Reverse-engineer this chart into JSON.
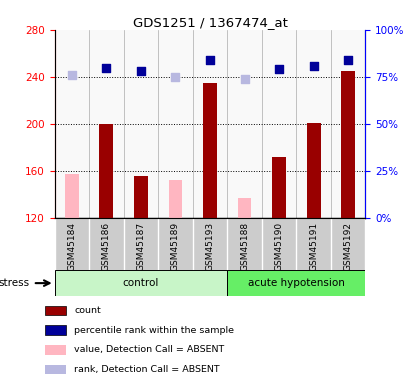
{
  "title": "GDS1251 / 1367474_at",
  "samples": [
    "GSM45184",
    "GSM45186",
    "GSM45187",
    "GSM45189",
    "GSM45193",
    "GSM45188",
    "GSM45190",
    "GSM45191",
    "GSM45192"
  ],
  "bar_values": [
    null,
    200,
    155,
    null,
    235,
    null,
    172,
    201,
    245
  ],
  "bar_absent_values": [
    157,
    null,
    null,
    152,
    null,
    137,
    null,
    null,
    null
  ],
  "rank_values": [
    null,
    80,
    78,
    null,
    84,
    null,
    79,
    81,
    84
  ],
  "rank_absent_values": [
    76,
    null,
    null,
    75,
    null,
    74,
    null,
    null,
    null
  ],
  "bar_color": "#990000",
  "bar_absent_color": "#ffb6c1",
  "rank_color": "#000099",
  "rank_absent_color": "#b8b8e0",
  "ylim_left": [
    120,
    280
  ],
  "ylim_right": [
    0,
    100
  ],
  "yticks_left": [
    120,
    160,
    200,
    240,
    280
  ],
  "yticks_right": [
    0,
    25,
    50,
    75,
    100
  ],
  "ytick_labels_right": [
    "0%",
    "25%",
    "50%",
    "75%",
    "100%"
  ],
  "gridlines": [
    160,
    200,
    240
  ],
  "group_boundaries": [
    0,
    5,
    9
  ],
  "group_labels": [
    "control",
    "acute hypotension"
  ],
  "group_colors": [
    "#c8f5c8",
    "#66ee66"
  ],
  "stress_label": "stress",
  "sample_bg_color": "#d0d0d0",
  "legend_items": [
    {
      "color": "#990000",
      "label": "count"
    },
    {
      "color": "#000099",
      "label": "percentile rank within the sample"
    },
    {
      "color": "#ffb6c1",
      "label": "value, Detection Call = ABSENT"
    },
    {
      "color": "#b8b8e0",
      "label": "rank, Detection Call = ABSENT"
    }
  ]
}
